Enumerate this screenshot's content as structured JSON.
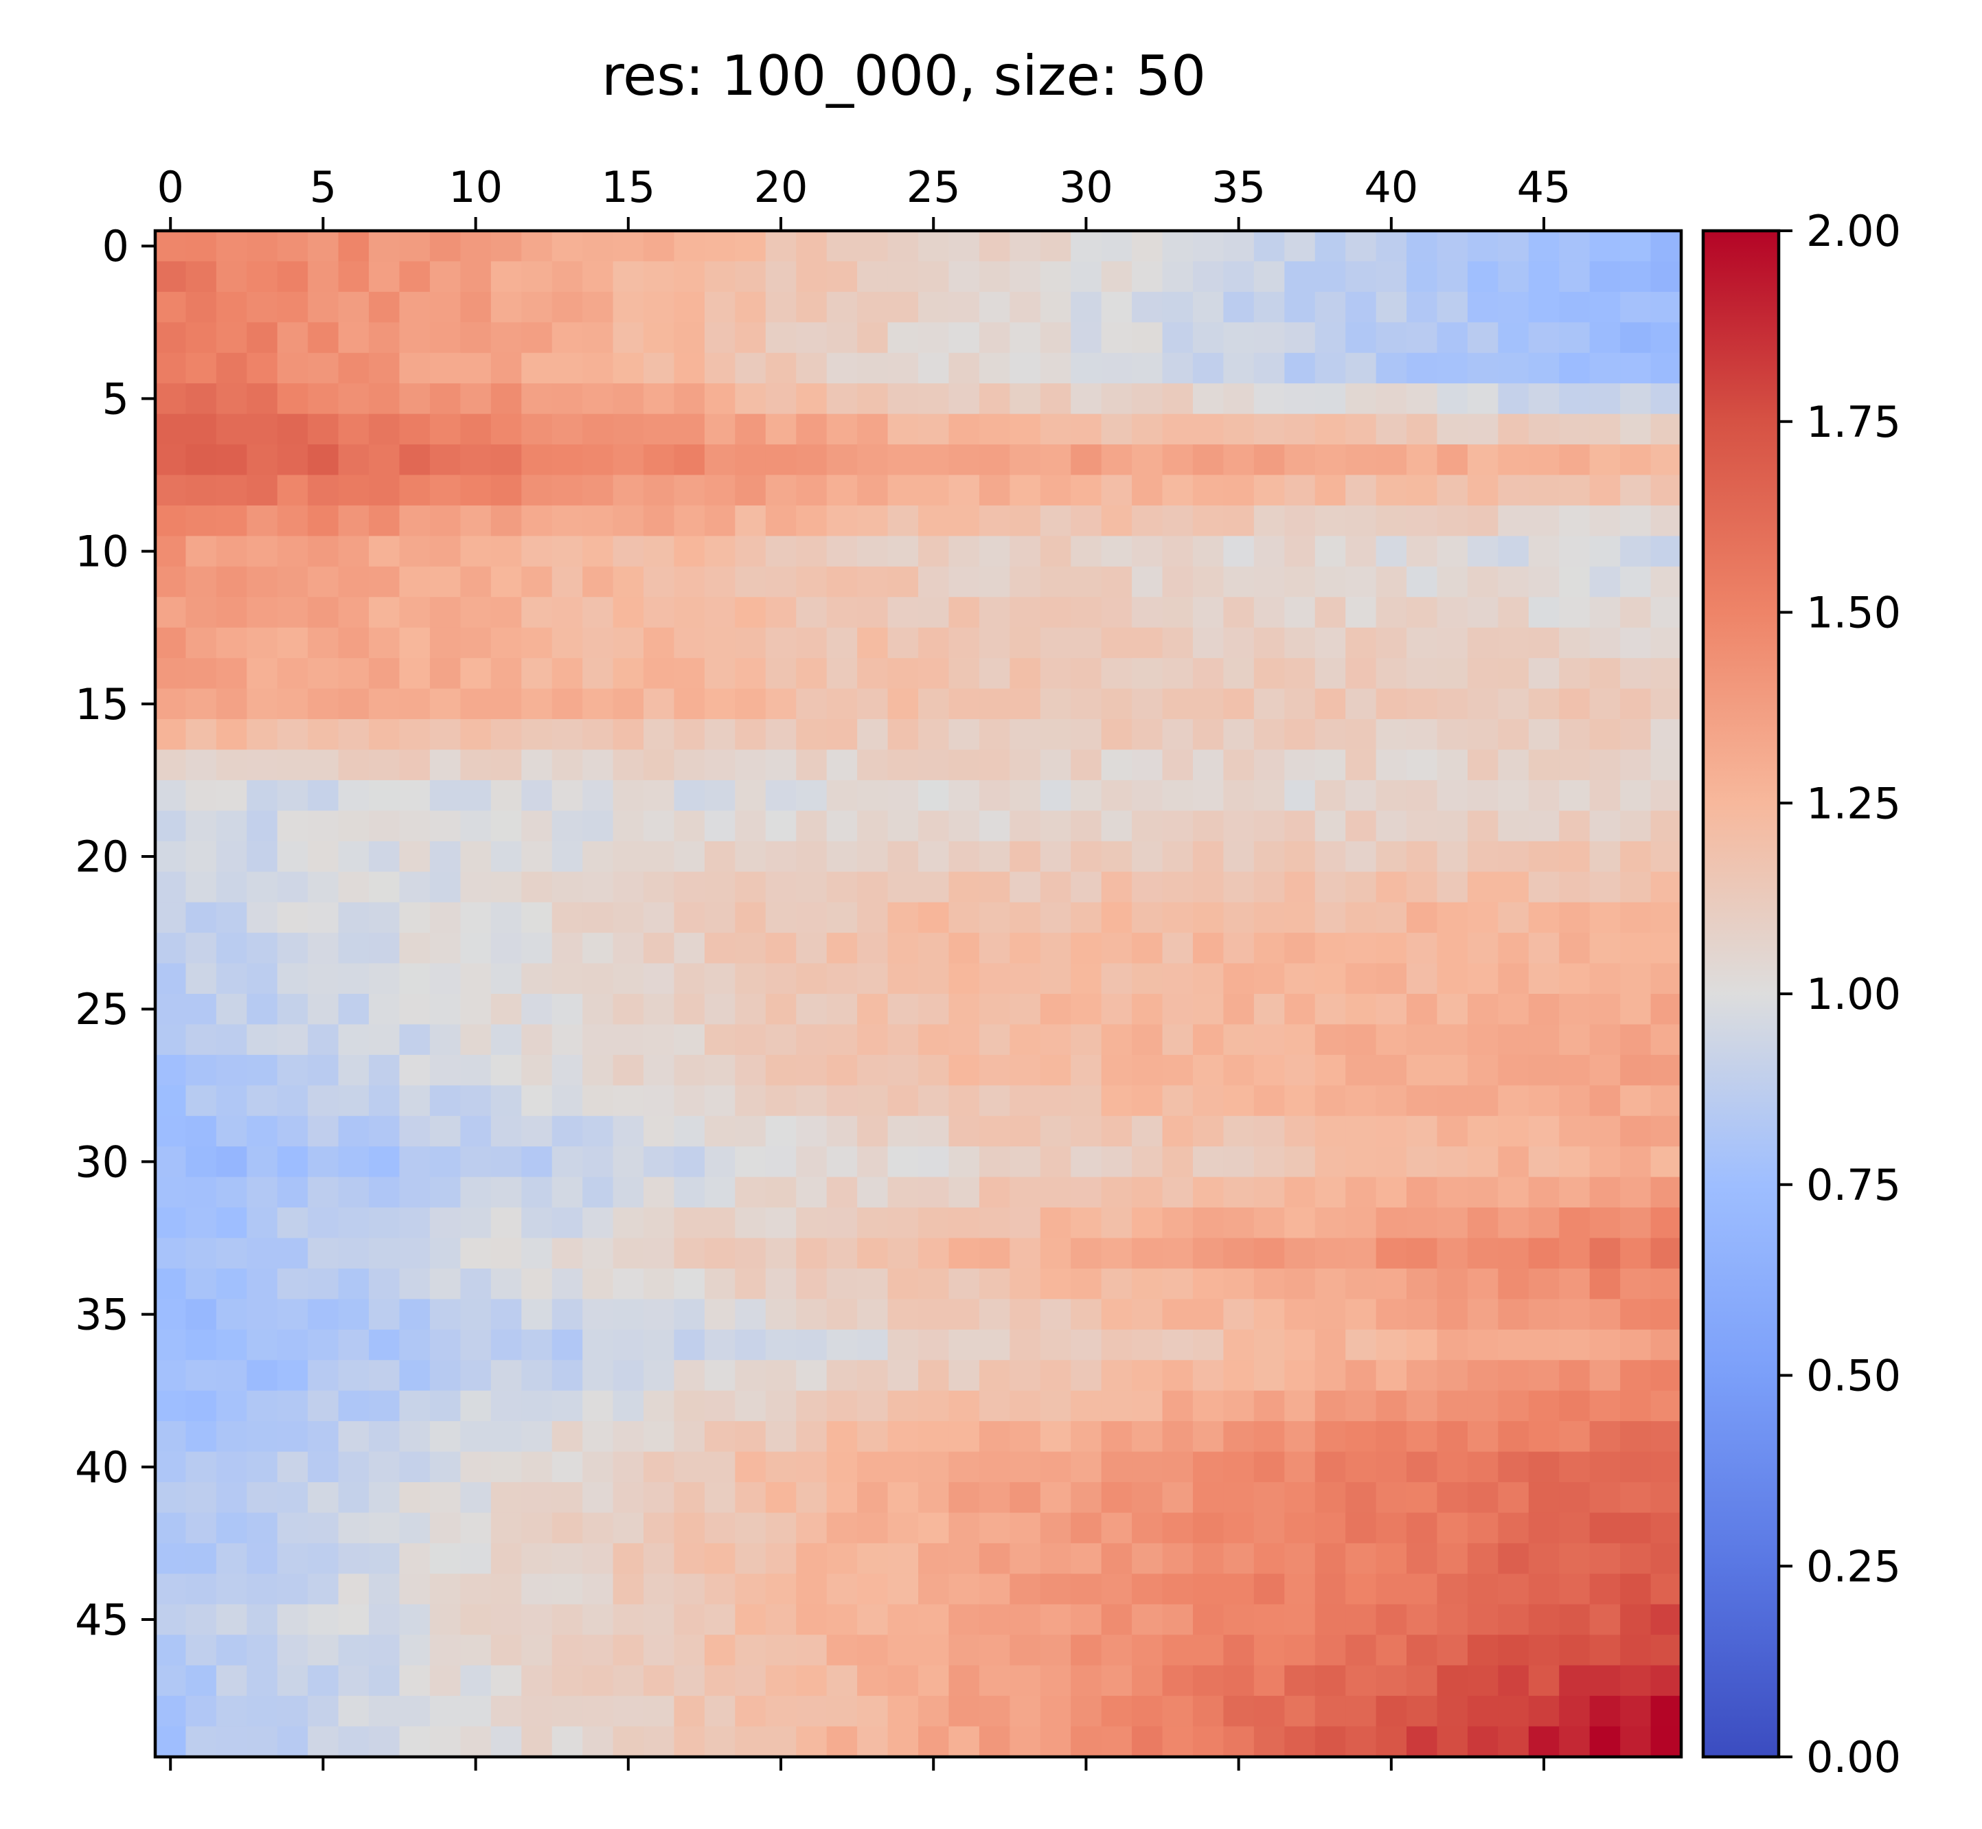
{
  "chart_data": {
    "type": "heatmap",
    "title": "res: 100_000, size: 50",
    "xlabel": "",
    "ylabel": "",
    "size": 50,
    "x_ticks": [
      0,
      5,
      10,
      15,
      20,
      25,
      30,
      35,
      40,
      45
    ],
    "y_ticks": [
      0,
      5,
      10,
      15,
      20,
      25,
      30,
      35,
      40,
      45
    ],
    "x_axis_position": "top",
    "colormap": "coolwarm",
    "vmin": 0.0,
    "vmax": 2.0,
    "colorbar_ticks": [
      "0.00",
      "0.25",
      "0.50",
      "0.75",
      "1.00",
      "1.25",
      "1.50",
      "1.75",
      "2.00"
    ],
    "grid": false,
    "grid_approx_summary": {
      "row_anchors": [
        {
          "row": 0,
          "left": 1.55,
          "mid": 1.1,
          "right": 0.72
        },
        {
          "row": 4,
          "left": 1.55,
          "mid": 1.05,
          "right": 0.72
        },
        {
          "row": 7,
          "left": 1.7,
          "mid": 1.38,
          "right": 1.25
        },
        {
          "row": 10,
          "left": 1.4,
          "mid": 1.12,
          "right": 0.95
        },
        {
          "row": 15,
          "left": 1.35,
          "mid": 1.18,
          "right": 1.12
        },
        {
          "row": 18,
          "left": 0.95,
          "mid": 1.02,
          "right": 1.05
        },
        {
          "row": 22,
          "left": 0.9,
          "mid": 1.2,
          "right": 1.25
        },
        {
          "row": 27,
          "left": 0.82,
          "mid": 1.2,
          "right": 1.35
        },
        {
          "row": 30,
          "left": 0.72,
          "mid": 1.05,
          "right": 1.3
        },
        {
          "row": 33,
          "left": 0.8,
          "mid": 1.22,
          "right": 1.55
        },
        {
          "row": 36,
          "left": 0.7,
          "mid": 1.05,
          "right": 1.4
        },
        {
          "row": 40,
          "left": 0.8,
          "mid": 1.3,
          "right": 1.65
        },
        {
          "row": 45,
          "left": 0.85,
          "mid": 1.3,
          "right": 1.75
        },
        {
          "row": 49,
          "left": 0.8,
          "mid": 1.3,
          "right": 2.0
        }
      ]
    }
  }
}
